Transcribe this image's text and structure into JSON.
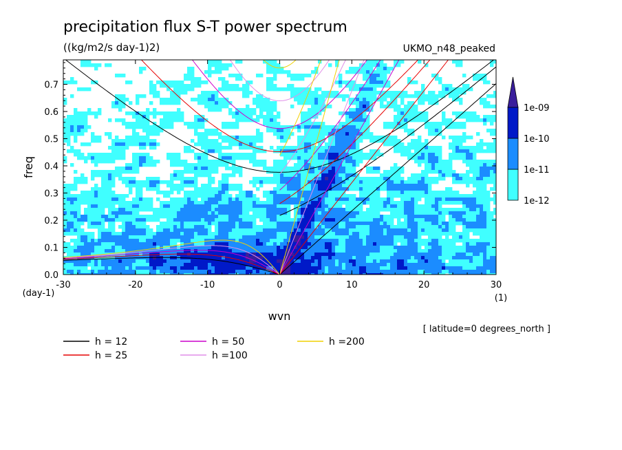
{
  "title": "precipitation flux S-T power spectrum",
  "units": "((kg/m2/s day-1)2)",
  "dataset": "UKMO_n48_peaked",
  "footer": "[ latitude=0 degrees_north ]",
  "colors": {
    "level_1e-12": "#40ffff",
    "level_1e-11": "#1b8cff",
    "level_1e-10": "#0019c8",
    "level_1e-09": "#3a1e9c",
    "h12": "#000000",
    "h25": "#e60000",
    "h50": "#cc00cc",
    "h100": "#e08ee8",
    "h200": "#f0d000"
  },
  "chart_data": {
    "type": "heatmap",
    "xlabel": "wvn",
    "ylabel": "freq",
    "x_unit": "(1)",
    "y_unit": "(day-1)",
    "xlim": [
      -30,
      30
    ],
    "ylim": [
      0,
      0.79
    ],
    "xticks": [
      -30,
      -20,
      -10,
      0,
      10,
      20,
      30
    ],
    "yticks": [
      0.0,
      0.1,
      0.2,
      0.3,
      0.4,
      0.5,
      0.6,
      0.7
    ],
    "xtick_labels": [
      "-30",
      "-20",
      "-10",
      "0",
      "10",
      "20",
      "30"
    ],
    "ytick_labels": [
      "0.0",
      "0.1",
      "0.2",
      "0.3",
      "0.4",
      "0.5",
      "0.6",
      "0.7"
    ],
    "colorbar": {
      "levels": [
        "1e-12",
        "1e-11",
        "1e-10",
        "1e-09"
      ],
      "extend": "max"
    },
    "legend": [
      {
        "label": "h = 12",
        "color": "#000000"
      },
      {
        "label": "h = 25",
        "color": "#e60000"
      },
      {
        "label": "h = 50",
        "color": "#cc00cc"
      },
      {
        "label": "h =100",
        "color": "#e08ee8"
      },
      {
        "label": "h =200",
        "color": "#f0d000"
      }
    ],
    "dispersion_curves": [
      {
        "h": 12,
        "color": "#000000"
      },
      {
        "h": 25,
        "color": "#e60000"
      },
      {
        "h": 50,
        "color": "#cc00cc"
      },
      {
        "h": 100,
        "color": "#e08ee8"
      },
      {
        "h": 200,
        "color": "#f0d000"
      }
    ]
  }
}
